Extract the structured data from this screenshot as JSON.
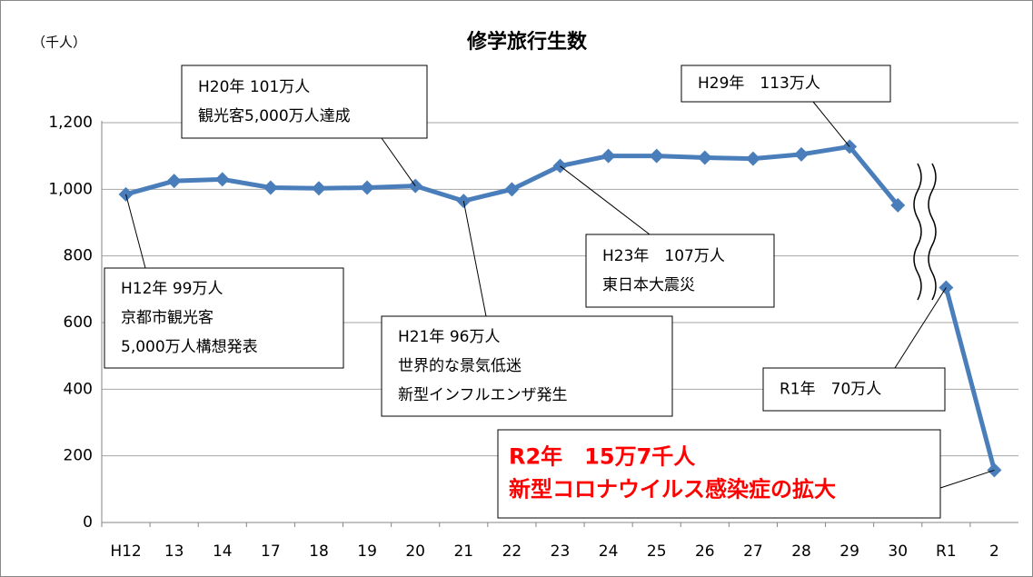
{
  "chart_data": {
    "type": "line",
    "title": "修学旅行生数",
    "y_axis_label": "（千人）",
    "categories": [
      "H12",
      "13",
      "14",
      "17",
      "18",
      "19",
      "20",
      "21",
      "22",
      "23",
      "24",
      "25",
      "26",
      "27",
      "28",
      "29",
      "30",
      "R1",
      "2"
    ],
    "series": [
      {
        "name": "修学旅行生数",
        "color": "#4a7ebb",
        "values": [
          985,
          1025,
          1030,
          1005,
          1003,
          1005,
          1010,
          965,
          1000,
          1070,
          1100,
          1100,
          1095,
          1092,
          1105,
          1128,
          952,
          705,
          157
        ]
      }
    ],
    "line_break_after": 16,
    "ylim": [
      0,
      1200
    ],
    "yticks": [
      0,
      200,
      400,
      600,
      800,
      {
        "value": 1000,
        "label": "1,000"
      },
      {
        "value": 1200,
        "label": "1,200"
      }
    ],
    "grid": true,
    "annotations": [
      {
        "lines": [
          "H20年 101万人",
          "観光客5,000万人達成"
        ]
      },
      {
        "lines": [
          "H29年　113万人"
        ]
      },
      {
        "lines": [
          "H12年 99万人",
          "京都市観光客",
          "5,000万人構想発表"
        ]
      },
      {
        "lines": [
          "H23年　107万人",
          "東日本大震災"
        ]
      },
      {
        "lines": [
          "H21年 96万人",
          "世界的な景気低迷",
          "新型インフルエンザ発生"
        ]
      },
      {
        "lines": [
          "R1年　70万人"
        ]
      },
      {
        "lines": [
          "R2年　15万7千人",
          "新型コロナウイルス感染症の拡大"
        ],
        "color": "#ff0000"
      }
    ]
  }
}
